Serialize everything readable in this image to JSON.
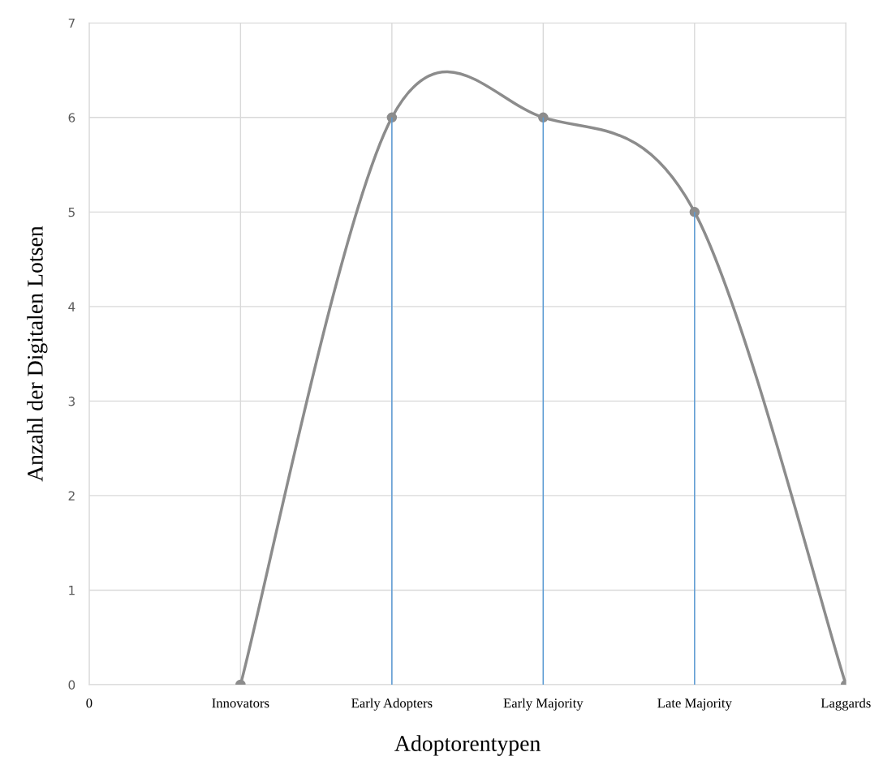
{
  "chart_data": {
    "type": "line",
    "xlabel": "Adoptorentypen",
    "ylabel": "Anzahl der Digitalen Lotsen",
    "categories": [
      "0",
      "Innovators",
      "Early Adopters",
      "Early Majority",
      "Late Majority",
      "Laggards"
    ],
    "series": [
      {
        "type": "bar",
        "color": "#5b9bd5",
        "values": [
          null,
          null,
          6,
          6,
          5,
          null
        ]
      },
      {
        "color": "#8c8c8c",
        "values": [
          null,
          0,
          6,
          6,
          5,
          0
        ]
      }
    ],
    "ylim": [
      0,
      7
    ],
    "yticks": [
      0,
      1,
      2,
      3,
      4,
      5,
      6,
      7
    ],
    "grid": true,
    "marker": "circle",
    "line_style": "solid"
  }
}
